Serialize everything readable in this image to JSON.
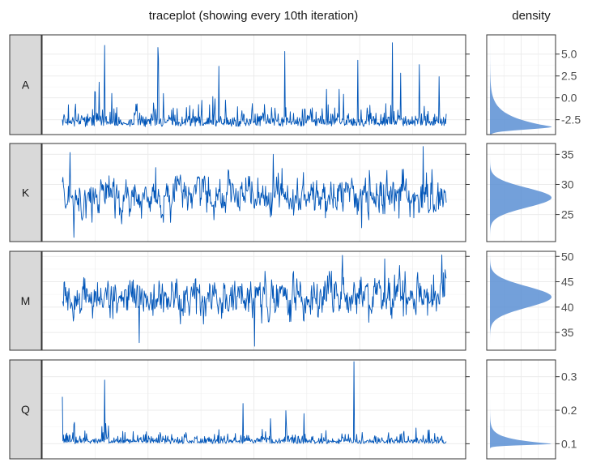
{
  "titles": {
    "trace": "traceplot (showing every 10th iteration)",
    "density": "density"
  },
  "colors": {
    "trace_line": "#0055b8",
    "density_fill": "#5b8fd4",
    "panel_border": "#333333",
    "strip_fill": "#d9d9d9",
    "grid": "#ebebeb"
  },
  "chart_data": [
    {
      "type": "line",
      "panel": "A",
      "strip_label": "A",
      "ylim": [
        -4.2,
        7.2
      ],
      "yticks": [
        -2.5,
        0.0,
        2.5,
        5.0
      ],
      "ytick_labels": [
        "-2.5",
        "0.0",
        "2.5",
        "5.0"
      ],
      "trace": {
        "n": 700,
        "base": -3.3,
        "dist": "right-skewed",
        "spread": 1.6,
        "peaks": [
          [
            0.11,
            6.0
          ],
          [
            0.25,
            4.5
          ],
          [
            0.58,
            5.3
          ],
          [
            0.77,
            4.3
          ],
          [
            0.86,
            6.3
          ],
          [
            0.93,
            3.8
          ]
        ]
      },
      "density": {
        "mode": -3.3,
        "shape": "right-skewed"
      }
    },
    {
      "type": "line",
      "panel": "K",
      "strip_label": "K",
      "ylim": [
        20.5,
        36.8
      ],
      "yticks": [
        25,
        30,
        35
      ],
      "ytick_labels": [
        "25",
        "30",
        "35"
      ],
      "trace": {
        "n": 700,
        "base": 28.0,
        "dist": "normal",
        "spread": 1.8,
        "peaks": [
          [
            0.02,
            35.3
          ],
          [
            0.55,
            35.0
          ],
          [
            0.94,
            36.3
          ]
        ],
        "dips": [
          [
            0.03,
            21.2
          ],
          [
            0.78,
            22.8
          ]
        ]
      },
      "density": {
        "mode": 27.8,
        "shape": "normal"
      }
    },
    {
      "type": "line",
      "panel": "M",
      "strip_label": "M",
      "ylim": [
        31.5,
        51.0
      ],
      "yticks": [
        35,
        40,
        45,
        50
      ],
      "ytick_labels": [
        "35",
        "40",
        "45",
        "50"
      ],
      "trace": {
        "n": 700,
        "base": 42.0,
        "dist": "normal",
        "spread": 2.3,
        "peaks": [
          [
            0.73,
            50.2
          ],
          [
            0.84,
            49.5
          ]
        ],
        "dips": [
          [
            0.2,
            33.0
          ],
          [
            0.5,
            32.3
          ]
        ]
      },
      "density": {
        "mode": 42.0,
        "shape": "normal"
      }
    },
    {
      "type": "line",
      "panel": "Q",
      "strip_label": "Q",
      "ylim": [
        0.055,
        0.35
      ],
      "yticks": [
        0.1,
        0.2,
        0.3
      ],
      "ytick_labels": [
        "0.1",
        "0.2",
        "0.3"
      ],
      "trace": {
        "n": 700,
        "base": 0.1,
        "dist": "right-skewed",
        "spread": 0.02,
        "peaks": [
          [
            0.0,
            0.24
          ],
          [
            0.11,
            0.29
          ],
          [
            0.47,
            0.22
          ],
          [
            0.63,
            0.19
          ],
          [
            0.76,
            0.345
          ]
        ]
      },
      "density": {
        "mode": 0.1,
        "shape": "right-skewed"
      }
    }
  ]
}
